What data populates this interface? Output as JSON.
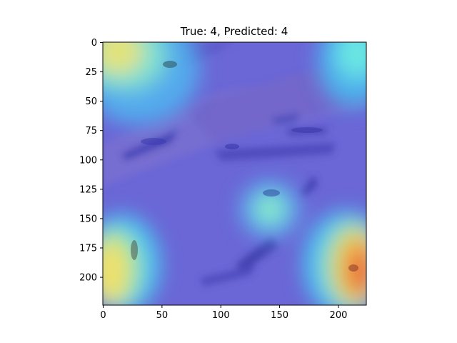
{
  "chart_data": {
    "type": "heatmap",
    "title": "True: 4, Predicted: 4",
    "xlabel": "",
    "ylabel": "",
    "image_size": [
      224,
      224
    ],
    "xlim": [
      0,
      224
    ],
    "ylim": [
      224,
      0
    ],
    "x_ticks": [
      0,
      50,
      100,
      150,
      200
    ],
    "y_ticks": [
      0,
      25,
      50,
      75,
      100,
      125,
      150,
      175,
      200
    ],
    "colormap": "jet",
    "grid": false,
    "legend": "none",
    "overlay_hotspots": [
      {
        "region": "top-left",
        "x": 15,
        "y": 15,
        "intensity": 0.72
      },
      {
        "region": "top-right",
        "x": 212,
        "y": 15,
        "intensity": 0.35
      },
      {
        "region": "center",
        "x": 142,
        "y": 143,
        "intensity": 0.38
      },
      {
        "region": "bottom-left",
        "x": 12,
        "y": 195,
        "intensity": 0.8
      },
      {
        "region": "bottom-right",
        "x": 210,
        "y": 200,
        "intensity": 0.95
      }
    ]
  }
}
